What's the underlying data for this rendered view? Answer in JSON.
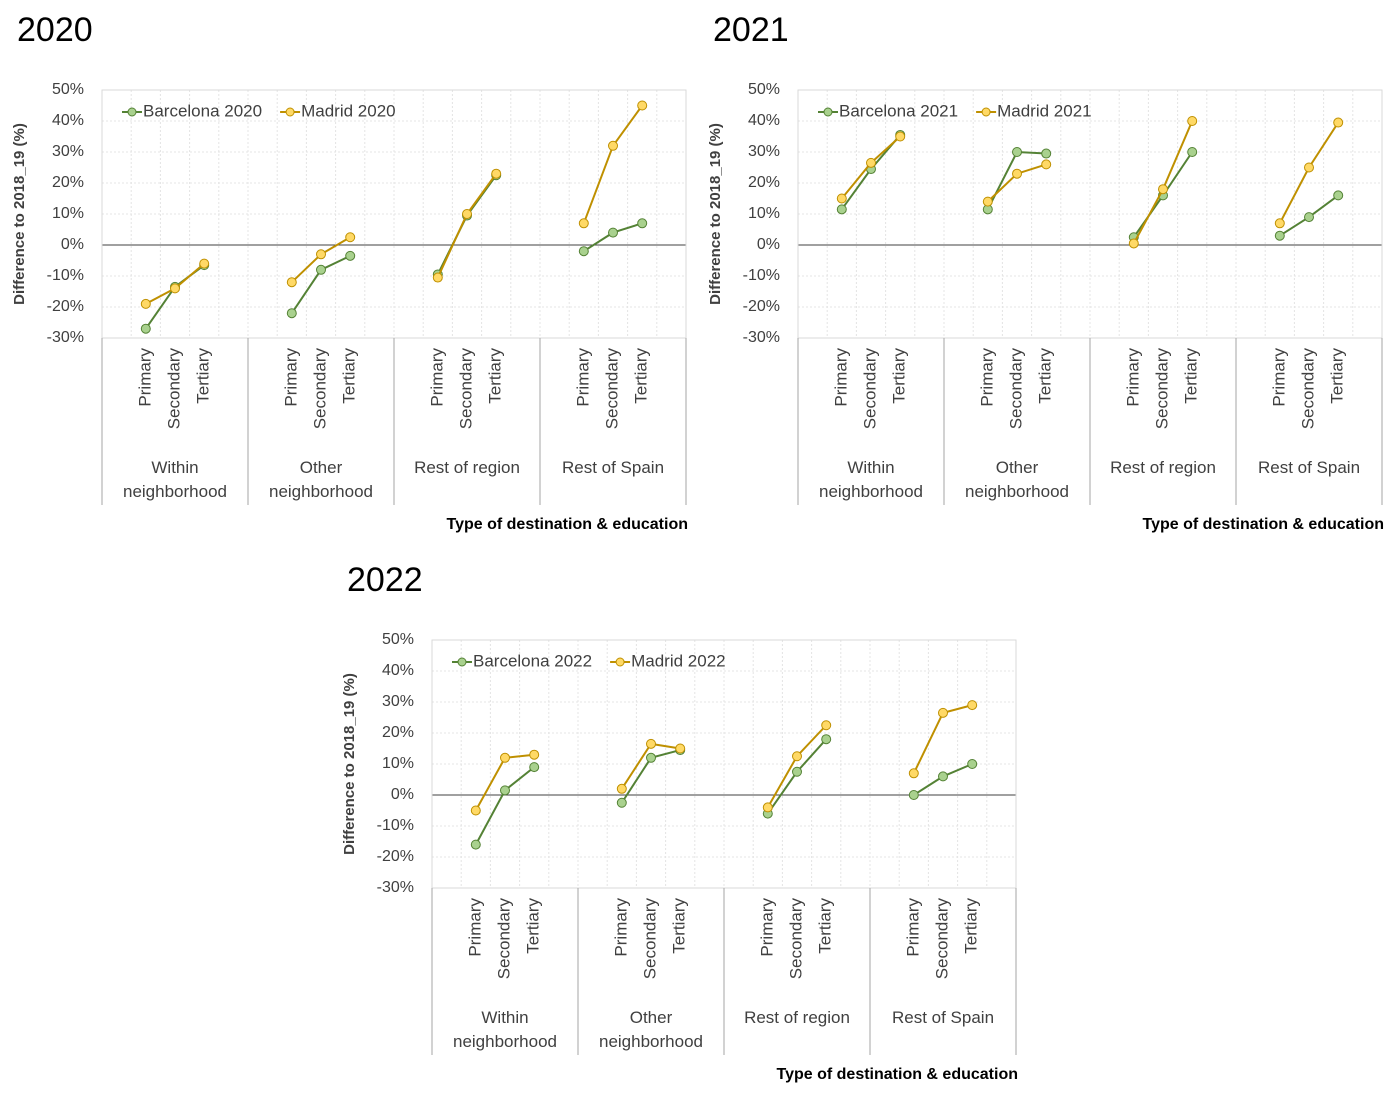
{
  "chart_data": [
    {
      "type": "line",
      "title": "2020",
      "ylabel": "Difference to 2018_19 (%)",
      "xlabel": "Type of destination & education",
      "groups": [
        "Within neighborhood",
        "Other neighborhood",
        "Rest of region",
        "Rest of Spain"
      ],
      "categories": [
        "Primary",
        "Secondary",
        "Tertiary",
        "Primary",
        "Secondary",
        "Tertiary",
        "Primary",
        "Secondary",
        "Tertiary",
        "Primary",
        "Secondary",
        "Tertiary"
      ],
      "series": [
        {
          "name": "Barcelona 2020",
          "color": "#548235",
          "marker_color": "#a9d18e",
          "values": [
            -27,
            -13.5,
            -6.5,
            -22,
            -8,
            -3.5,
            -9.5,
            9.5,
            22.5,
            -2,
            4,
            7
          ]
        },
        {
          "name": "Madrid 2020",
          "color": "#bf9000",
          "marker_color": "#ffd966",
          "values": [
            -19,
            -14,
            -6,
            -12,
            -3,
            2.5,
            -10.5,
            10,
            23,
            7,
            32,
            45
          ]
        }
      ],
      "ylim": [
        -30,
        50
      ],
      "yticks": [
        {
          "value": -30,
          "label": "-30%"
        },
        {
          "value": -20,
          "label": "-20%"
        },
        {
          "value": -10,
          "label": "-10%"
        },
        {
          "value": 0,
          "label": "0%"
        },
        {
          "value": 10,
          "label": "10%"
        },
        {
          "value": 20,
          "label": "20%"
        },
        {
          "value": 30,
          "label": "30%"
        },
        {
          "value": 40,
          "label": "40%"
        },
        {
          "value": 50,
          "label": "50%"
        }
      ],
      "grid": true
    },
    {
      "type": "line",
      "title": "2021",
      "ylabel": "Difference to 2018_19 (%)",
      "xlabel": "Type of destination & education",
      "groups": [
        "Within neighborhood",
        "Other neighborhood",
        "Rest of region",
        "Rest of Spain"
      ],
      "categories": [
        "Primary",
        "Secondary",
        "Tertiary",
        "Primary",
        "Secondary",
        "Tertiary",
        "Primary",
        "Secondary",
        "Tertiary",
        "Primary",
        "Secondary",
        "Tertiary"
      ],
      "series": [
        {
          "name": "Barcelona 2021",
          "color": "#548235",
          "marker_color": "#a9d18e",
          "values": [
            11.5,
            24.5,
            35.5,
            11.5,
            30,
            29.5,
            2.5,
            16,
            30,
            3,
            9,
            16
          ]
        },
        {
          "name": "Madrid 2021",
          "color": "#bf9000",
          "marker_color": "#ffd966",
          "values": [
            15,
            26.5,
            35,
            14,
            23,
            26,
            0.5,
            18,
            40,
            7,
            25,
            39.5
          ]
        }
      ],
      "ylim": [
        -30,
        50
      ],
      "yticks": [
        {
          "value": -30,
          "label": "-30%"
        },
        {
          "value": -20,
          "label": "-20%"
        },
        {
          "value": -10,
          "label": "-10%"
        },
        {
          "value": 0,
          "label": "0%"
        },
        {
          "value": 10,
          "label": "10%"
        },
        {
          "value": 20,
          "label": "20%"
        },
        {
          "value": 30,
          "label": "30%"
        },
        {
          "value": 40,
          "label": "40%"
        },
        {
          "value": 50,
          "label": "50%"
        }
      ],
      "grid": true
    },
    {
      "type": "line",
      "title": "2022",
      "ylabel": "Difference to 2018_19 (%)",
      "xlabel": "Type of destination & education",
      "groups": [
        "Within neighborhood",
        "Other neighborhood",
        "Rest of region",
        "Rest of Spain"
      ],
      "categories": [
        "Primary",
        "Secondary",
        "Tertiary",
        "Primary",
        "Secondary",
        "Tertiary",
        "Primary",
        "Secondary",
        "Tertiary",
        "Primary",
        "Secondary",
        "Tertiary"
      ],
      "series": [
        {
          "name": "Barcelona 2022",
          "color": "#548235",
          "marker_color": "#a9d18e",
          "values": [
            -16,
            1.5,
            9,
            -2.5,
            12,
            14.5,
            -6,
            7.5,
            18,
            0,
            6,
            10
          ]
        },
        {
          "name": "Madrid 2022",
          "color": "#bf9000",
          "marker_color": "#ffd966",
          "values": [
            -5,
            12,
            13,
            2,
            16.5,
            15,
            -4,
            12.5,
            22.5,
            7,
            26.5,
            29
          ]
        }
      ],
      "ylim": [
        -30,
        50
      ],
      "yticks": [
        {
          "value": -30,
          "label": "-30%"
        },
        {
          "value": -20,
          "label": "-20%"
        },
        {
          "value": -10,
          "label": "-10%"
        },
        {
          "value": 0,
          "label": "0%"
        },
        {
          "value": 10,
          "label": "10%"
        },
        {
          "value": 20,
          "label": "20%"
        },
        {
          "value": 30,
          "label": "30%"
        },
        {
          "value": 40,
          "label": "40%"
        },
        {
          "value": 50,
          "label": "50%"
        }
      ],
      "grid": true
    }
  ]
}
